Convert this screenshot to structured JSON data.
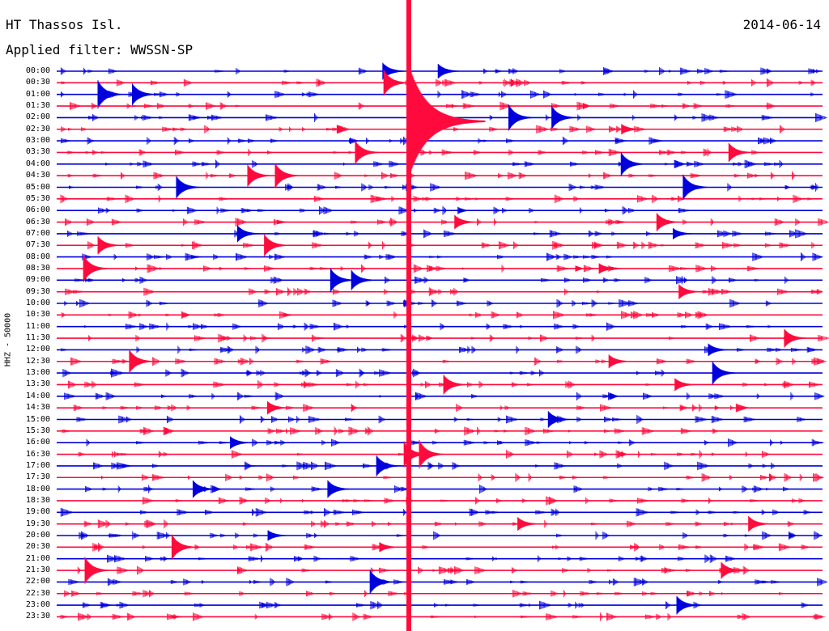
{
  "header": {
    "station": "HT Thassos Isl.",
    "date": "2014-06-14",
    "filter": "Applied filter: WWSSN-SP"
  },
  "channel_label": "HHZ - 50000",
  "colors": {
    "trace_a": "#0000dd",
    "trace_b": "#ff0a3c",
    "background": "#ffffff"
  },
  "rows": [
    "00:00",
    "00:30",
    "01:00",
    "01:30",
    "02:00",
    "02:30",
    "03:00",
    "03:30",
    "04:00",
    "04:30",
    "05:00",
    "05:30",
    "06:00",
    "06:30",
    "07:00",
    "07:30",
    "08:00",
    "08:30",
    "09:00",
    "09:30",
    "10:00",
    "10:30",
    "11:00",
    "11:30",
    "12:00",
    "12:30",
    "13:00",
    "13:30",
    "14:00",
    "14:30",
    "15:00",
    "15:30",
    "16:00",
    "16:30",
    "17:00",
    "17:30",
    "18:00",
    "18:30",
    "19:00",
    "19:30",
    "20:00",
    "20:30",
    "21:00",
    "21:30",
    "22:00",
    "22:30",
    "23:00",
    "23:30"
  ]
}
